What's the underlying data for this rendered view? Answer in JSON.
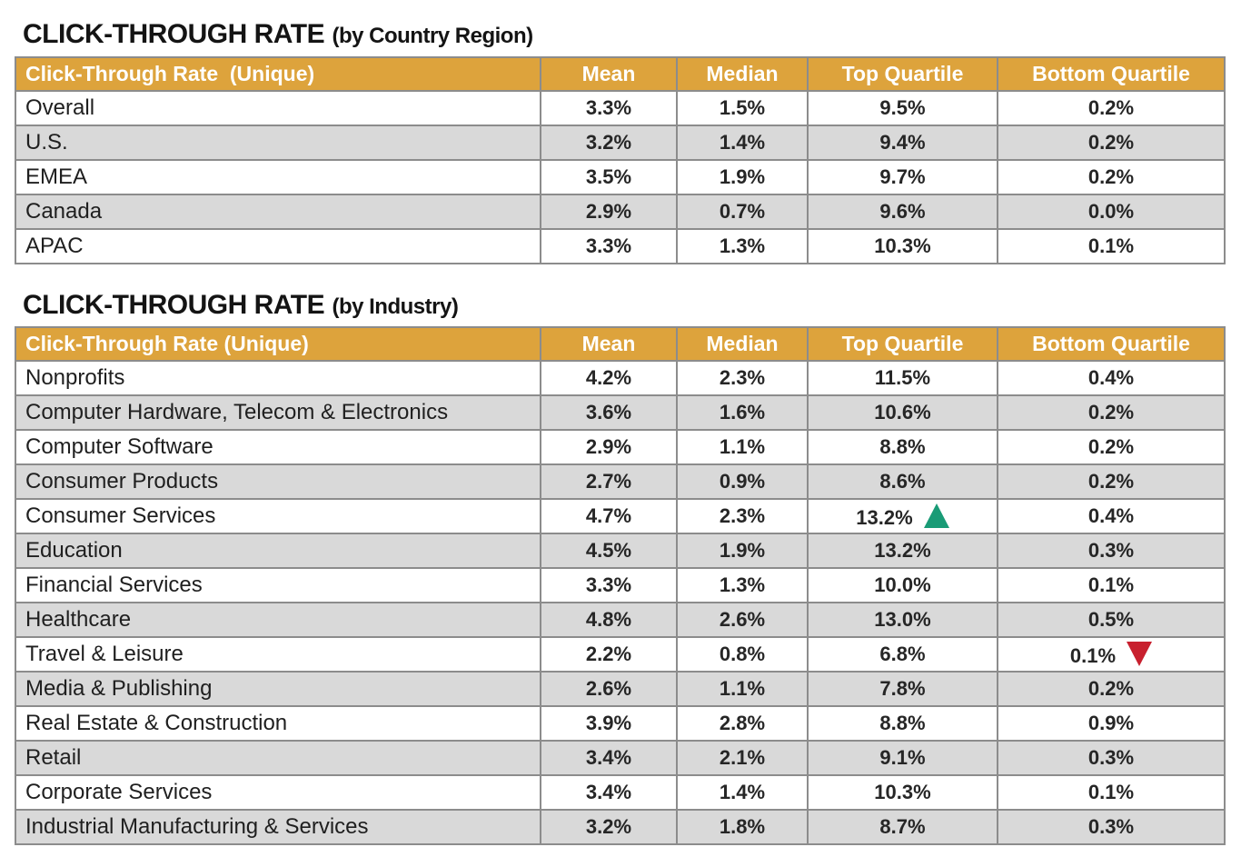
{
  "palette": {
    "header_background": "#dda33c",
    "header_text": "#ffffff",
    "row_alt_background": "#d9d9d9",
    "row_background": "#ffffff",
    "grid_border": "#8c8c8c",
    "body_text": "#1a1a1a",
    "up_indicator_color": "#199b76",
    "down_indicator_color": "#c8202e"
  },
  "icons": {
    "up_indicator": "up-triangle-icon",
    "down_indicator": "down-triangle-icon"
  },
  "sections": [
    {
      "title_main": "CLICK-THROUGH RATE",
      "title_sub": "(by Country Region)",
      "header_label": "Click-Through Rate  (Unique)",
      "columns": [
        "Mean",
        "Median",
        "Top Quartile",
        "Bottom Quartile"
      ],
      "rows": [
        {
          "label": "Overall",
          "mean": "3.3%",
          "median": "1.5%",
          "top": "9.5%",
          "bottom": "0.2%"
        },
        {
          "label": "U.S.",
          "mean": "3.2%",
          "median": "1.4%",
          "top": "9.4%",
          "bottom": "0.2%"
        },
        {
          "label": "EMEA",
          "mean": "3.5%",
          "median": "1.9%",
          "top": "9.7%",
          "bottom": "0.2%"
        },
        {
          "label": "Canada",
          "mean": "2.9%",
          "median": "0.7%",
          "top": "9.6%",
          "bottom": "0.0%"
        },
        {
          "label": "APAC",
          "mean": "3.3%",
          "median": "1.3%",
          "top": "10.3%",
          "bottom": "0.1%"
        }
      ]
    },
    {
      "title_main": "CLICK-THROUGH RATE",
      "title_sub": "(by Industry)",
      "header_label": "Click-Through Rate (Unique)",
      "columns": [
        "Mean",
        "Median",
        "Top Quartile",
        "Bottom Quartile"
      ],
      "rows": [
        {
          "label": "Nonprofits",
          "mean": "4.2%",
          "median": "2.3%",
          "top": "11.5%",
          "bottom": "0.4%"
        },
        {
          "label": "Computer Hardware, Telecom & Electronics",
          "mean": "3.6%",
          "median": "1.6%",
          "top": "10.6%",
          "bottom": "0.2%"
        },
        {
          "label": "Computer Software",
          "mean": "2.9%",
          "median": "1.1%",
          "top": "8.8%",
          "bottom": "0.2%"
        },
        {
          "label": "Consumer Products",
          "mean": "2.7%",
          "median": "0.9%",
          "top": "8.6%",
          "bottom": "0.2%"
        },
        {
          "label": "Consumer Services",
          "mean": "4.7%",
          "median": "2.3%",
          "top": "13.2%",
          "bottom": "0.4%",
          "top_indicator": "up"
        },
        {
          "label": "Education",
          "mean": "4.5%",
          "median": "1.9%",
          "top": "13.2%",
          "bottom": "0.3%"
        },
        {
          "label": "Financial Services",
          "mean": "3.3%",
          "median": "1.3%",
          "top": "10.0%",
          "bottom": "0.1%"
        },
        {
          "label": "Healthcare",
          "mean": "4.8%",
          "median": "2.6%",
          "top": "13.0%",
          "bottom": "0.5%"
        },
        {
          "label": "Travel & Leisure",
          "mean": "2.2%",
          "median": "0.8%",
          "top": "6.8%",
          "bottom": "0.1%",
          "bottom_indicator": "down"
        },
        {
          "label": "Media & Publishing",
          "mean": "2.6%",
          "median": "1.1%",
          "top": "7.8%",
          "bottom": "0.2%"
        },
        {
          "label": "Real Estate & Construction",
          "mean": "3.9%",
          "median": "2.8%",
          "top": "8.8%",
          "bottom": "0.9%"
        },
        {
          "label": "Retail",
          "mean": "3.4%",
          "median": "2.1%",
          "top": "9.1%",
          "bottom": "0.3%"
        },
        {
          "label": "Corporate Services",
          "mean": "3.4%",
          "median": "1.4%",
          "top": "10.3%",
          "bottom": "0.1%"
        },
        {
          "label": "Industrial Manufacturing & Services",
          "mean": "3.2%",
          "median": "1.8%",
          "top": "8.7%",
          "bottom": "0.3%"
        }
      ]
    }
  ],
  "chart_data": [
    {
      "type": "table",
      "title": "CLICK-THROUGH RATE (by Country Region)",
      "columns": [
        "Click-Through Rate  (Unique)",
        "Mean",
        "Median",
        "Top Quartile",
        "Bottom Quartile"
      ],
      "rows": [
        [
          "Overall",
          "3.3%",
          "1.5%",
          "9.5%",
          "0.2%"
        ],
        [
          "U.S.",
          "3.2%",
          "1.4%",
          "9.4%",
          "0.2%"
        ],
        [
          "EMEA",
          "3.5%",
          "1.9%",
          "9.7%",
          "0.2%"
        ],
        [
          "Canada",
          "2.9%",
          "0.7%",
          "9.6%",
          "0.0%"
        ],
        [
          "APAC",
          "3.3%",
          "1.3%",
          "10.3%",
          "0.1%"
        ]
      ]
    },
    {
      "type": "table",
      "title": "CLICK-THROUGH RATE (by Industry)",
      "columns": [
        "Click-Through Rate (Unique)",
        "Mean",
        "Median",
        "Top Quartile",
        "Bottom Quartile"
      ],
      "rows": [
        [
          "Nonprofits",
          "4.2%",
          "2.3%",
          "11.5%",
          "0.4%"
        ],
        [
          "Computer Hardware, Telecom & Electronics",
          "3.6%",
          "1.6%",
          "10.6%",
          "0.2%"
        ],
        [
          "Computer Software",
          "2.9%",
          "1.1%",
          "8.8%",
          "0.2%"
        ],
        [
          "Consumer Products",
          "2.7%",
          "0.9%",
          "8.6%",
          "0.2%"
        ],
        [
          "Consumer Services",
          "4.7%",
          "2.3%",
          "13.2%",
          "0.4%"
        ],
        [
          "Education",
          "4.5%",
          "1.9%",
          "13.2%",
          "0.3%"
        ],
        [
          "Financial Services",
          "3.3%",
          "1.3%",
          "10.0%",
          "0.1%"
        ],
        [
          "Healthcare",
          "4.8%",
          "2.6%",
          "13.0%",
          "0.5%"
        ],
        [
          "Travel & Leisure",
          "2.2%",
          "0.8%",
          "6.8%",
          "0.1%"
        ],
        [
          "Media & Publishing",
          "2.6%",
          "1.1%",
          "7.8%",
          "0.2%"
        ],
        [
          "Real Estate & Construction",
          "3.9%",
          "2.8%",
          "8.8%",
          "0.9%"
        ],
        [
          "Retail",
          "3.4%",
          "2.1%",
          "9.1%",
          "0.3%"
        ],
        [
          "Corporate Services",
          "3.4%",
          "1.4%",
          "10.3%",
          "0.1%"
        ],
        [
          "Industrial Manufacturing & Services",
          "3.2%",
          "1.8%",
          "8.7%",
          "0.3%"
        ]
      ],
      "annotations": [
        {
          "row": "Consumer Services",
          "column": "Top Quartile",
          "indicator": "up-triangle",
          "color": "#199b76"
        },
        {
          "row": "Travel & Leisure",
          "column": "Bottom Quartile",
          "indicator": "down-triangle",
          "color": "#c8202e"
        }
      ]
    }
  ]
}
